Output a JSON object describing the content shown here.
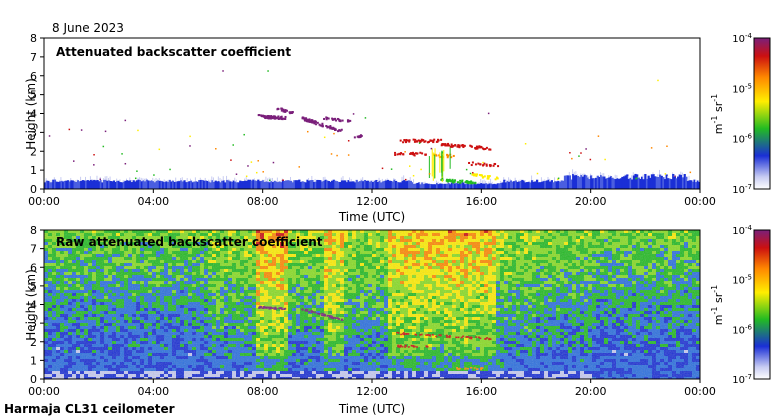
{
  "date_label": "8 June 2023",
  "footer_label": "Harmaja CL31 ceilometer",
  "colors": {
    "purple": "#7a1f7a",
    "red": "#cc1010",
    "orange": "#ff8800",
    "yellow": "#ffee00",
    "green": "#22bb22",
    "blue": "#1a2fd6",
    "light_blue": "#c8ccf2"
  },
  "chart_data": [
    {
      "type": "heatmap",
      "title": "Attenuated backscatter coefficient",
      "xlabel": "Time (UTC)",
      "ylabel": "Height (km)",
      "x_ticks": [
        "00:00",
        "04:00",
        "08:00",
        "12:00",
        "16:00",
        "20:00",
        "00:00"
      ],
      "y_ticks": [
        "0",
        "1",
        "2",
        "3",
        "4",
        "5",
        "6",
        "7",
        "8"
      ],
      "ylim": [
        0,
        8
      ],
      "xlim_hours": [
        0,
        24
      ],
      "colorbar": {
        "scale": "log",
        "range": [
          1e-07,
          0.0001
        ],
        "label_base": "m",
        "label_exp1": "-1",
        "label_mid": " sr",
        "label_exp2": "-1",
        "ticks": [
          {
            "base": "10",
            "exp": "-4"
          },
          {
            "base": "10",
            "exp": "-5"
          },
          {
            "base": "10",
            "exp": "-6"
          },
          {
            "base": "10",
            "exp": "-7"
          }
        ]
      }
    },
    {
      "type": "heatmap",
      "title": "Raw attenuated backscatter coefficient",
      "xlabel": "Time (UTC)",
      "ylabel": "Height (km)",
      "x_ticks": [
        "00:00",
        "04:00",
        "08:00",
        "12:00",
        "16:00",
        "20:00",
        "00:00"
      ],
      "y_ticks": [
        "0",
        "1",
        "2",
        "3",
        "4",
        "5",
        "6",
        "7",
        "8"
      ],
      "ylim": [
        0,
        8
      ],
      "xlim_hours": [
        0,
        24
      ],
      "colorbar": {
        "scale": "log",
        "range": [
          1e-07,
          0.0001
        ],
        "label_base": "m",
        "label_exp1": "-1",
        "label_mid": " sr",
        "label_exp2": "-1",
        "ticks": [
          {
            "base": "10",
            "exp": "-4"
          },
          {
            "base": "10",
            "exp": "-5"
          },
          {
            "base": "10",
            "exp": "-6"
          },
          {
            "base": "10",
            "exp": "-7"
          }
        ]
      }
    }
  ]
}
